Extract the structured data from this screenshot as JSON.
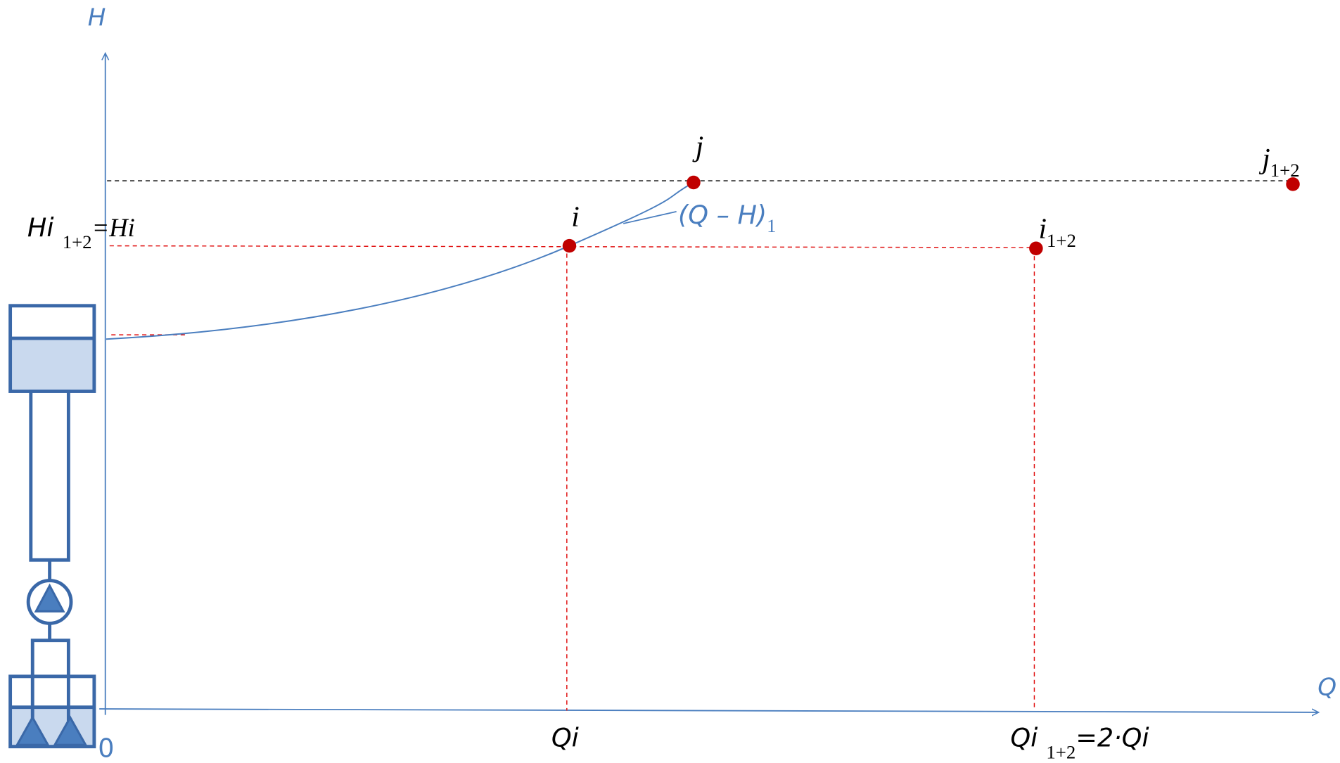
{
  "axes": {
    "y_label": "H",
    "x_label": "Q",
    "origin": "0"
  },
  "points": [
    {
      "label": "j"
    },
    {
      "label": "i"
    },
    {
      "label": "j",
      "subscript": "1+2"
    },
    {
      "label": "i",
      "subscript": "1+2"
    }
  ],
  "curve": {
    "label": "(Q – H)",
    "subscript": "1"
  },
  "annotations": {
    "h_axis": {
      "text": "Hi",
      "subscript": "1+2",
      "suffix": "=Hi"
    },
    "q_axis_1": {
      "text": "Qi"
    },
    "q_axis_2": {
      "text": "Qi",
      "subscript": "1+2",
      "suffix": "=2·Qi"
    }
  }
}
